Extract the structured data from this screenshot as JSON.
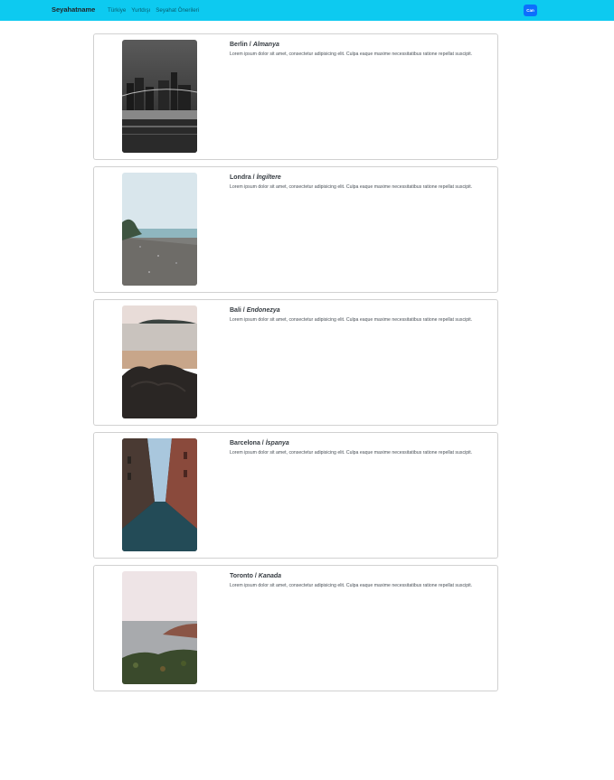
{
  "navbar": {
    "brand": "Seyahatname",
    "links": [
      "Türkiye",
      "Yurtdışı",
      "Seyahat Önerileri"
    ],
    "button_label": "Can",
    "background": "#0dcaf0",
    "button_color": "#0d6efd"
  },
  "cards": [
    {
      "city": "Berlin",
      "country": "Almanya",
      "separator": " / ",
      "text": "Lorem ipsum dolor sit amet, consectetur adipisicing elit. Culpa eaque maxime necessitatibus ratione repellat suscipit."
    },
    {
      "city": "Londra",
      "country": "İngiltere",
      "separator": " / ",
      "text": "Lorem ipsum dolor sit amet, consectetur adipisicing elit. Culpa eaque maxime necessitatibus ratione repellat suscipit."
    },
    {
      "city": "Bali",
      "country": "Endonezya",
      "separator": " / ",
      "text": "Lorem ipsum dolor sit amet, consectetur adipisicing elit. Culpa eaque maxime necessitatibus ratione repellat suscipit."
    },
    {
      "city": "Barcelona",
      "country": "İspanya",
      "separator": " / ",
      "text": "Lorem ipsum dolor sit amet, consectetur adipisicing elit. Culpa eaque maxime necessitatibus ratione repellat suscipit."
    },
    {
      "city": "Toronto",
      "country": "Kanada",
      "separator": " / ",
      "text": "Lorem ipsum dolor sit amet, consectetur adipisicing elit. Culpa eaque maxime necessitatibus ratione repellat suscipit."
    }
  ]
}
